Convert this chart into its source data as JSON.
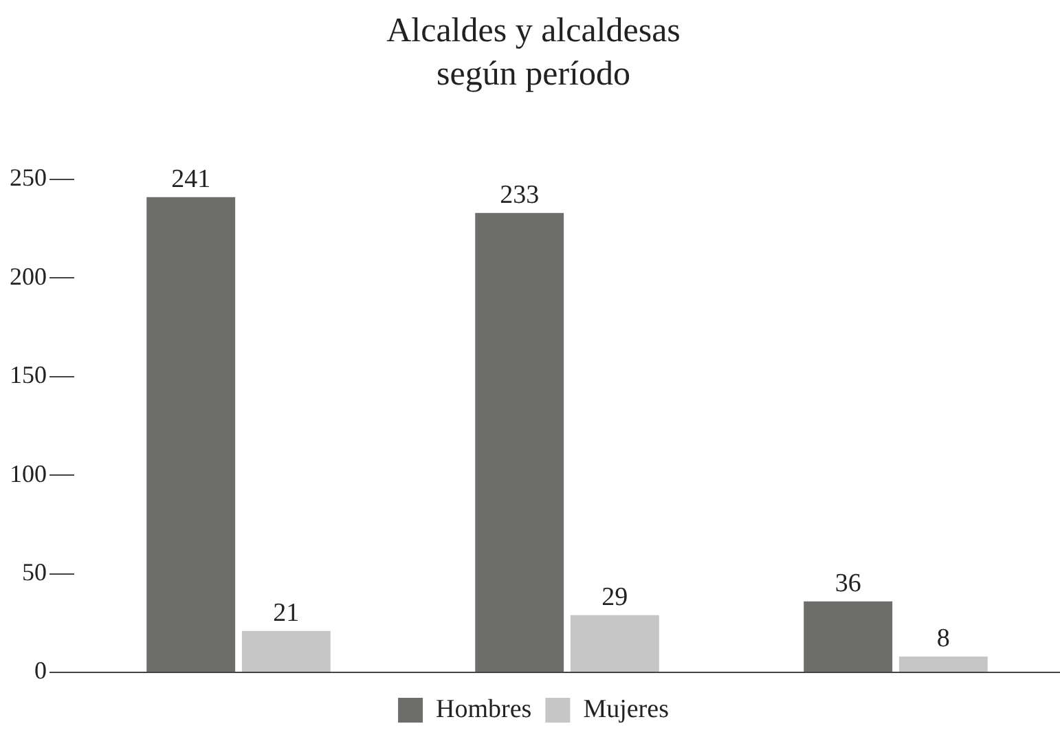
{
  "chart_data": {
    "type": "bar",
    "title": "Alcaldes y alcaldesas\nsegún período",
    "categories": [
      null,
      null,
      null
    ],
    "series": [
      {
        "name": "Hombres",
        "color": "#6d6d6b",
        "values": [
          241,
          233,
          36
        ]
      },
      {
        "name": "Mujeres",
        "color": "#c6c6c6",
        "values": [
          21,
          29,
          8
        ]
      }
    ],
    "ylim": [
      0,
      250
    ],
    "yticks": [
      0,
      50,
      100,
      150,
      200,
      250
    ],
    "grid": false,
    "legend": "bottom",
    "data_labels": true
  }
}
